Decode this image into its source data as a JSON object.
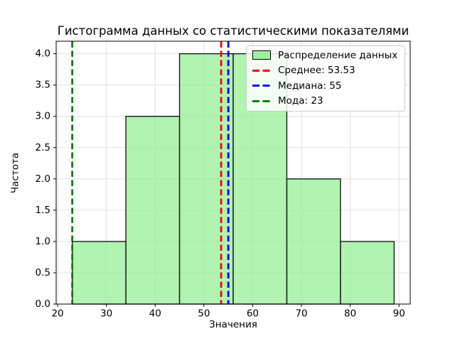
{
  "chart_data": {
    "type": "bar",
    "variant": "histogram",
    "title": "Гистограмма данных со статистическими показателями",
    "xlabel": "Значения",
    "ylabel": "Частота",
    "bins": {
      "edges": [
        23,
        34,
        45,
        56,
        67,
        78,
        89
      ],
      "frequencies": [
        1,
        3,
        4,
        4,
        2,
        1
      ]
    },
    "xlim": [
      19.7,
      92.3
    ],
    "ylim": [
      0,
      4.2
    ],
    "xticks": {
      "values": [
        20,
        30,
        40,
        50,
        60,
        70,
        80,
        90
      ],
      "labels": [
        "20",
        "30",
        "40",
        "50",
        "60",
        "70",
        "80",
        "90"
      ]
    },
    "yticks": {
      "values": [
        0,
        0.5,
        1,
        1.5,
        2,
        2.5,
        3,
        3.5,
        4
      ],
      "labels": [
        "0.0",
        "0.5",
        "1.0",
        "1.5",
        "2.0",
        "2.5",
        "3.0",
        "3.5",
        "4.0"
      ]
    },
    "grid": true,
    "legend_position": "upper right",
    "statistics": {
      "mean": 53.53,
      "median": 55,
      "mode": 23
    },
    "vlines": [
      {
        "name": "mean-line",
        "x": 53.53,
        "color": "#ff0000",
        "style": "dashed"
      },
      {
        "name": "median-line",
        "x": 55,
        "color": "#0000ff",
        "style": "dashed"
      },
      {
        "name": "mode-line",
        "x": 23,
        "color": "#008000",
        "style": "dashed"
      }
    ],
    "legend_items": [
      {
        "label": "Распределение данных",
        "marker": "patch",
        "color": "#90ee90"
      },
      {
        "label": "Среднее: 53.53",
        "marker": "dashed-line",
        "color": "#ff0000"
      },
      {
        "label": "Медиана: 55",
        "marker": "dashed-line",
        "color": "#0000ff"
      },
      {
        "label": "Мода: 23",
        "marker": "dashed-line",
        "color": "#008000"
      }
    ],
    "colors": {
      "bar_fill": "#90ee90",
      "bar_fill_opacity": 0.7,
      "bar_edge": "#1a1a1a",
      "grid": "#e0e0e0",
      "frame": "#000000",
      "background": "#ffffff",
      "text": "#000000"
    }
  }
}
